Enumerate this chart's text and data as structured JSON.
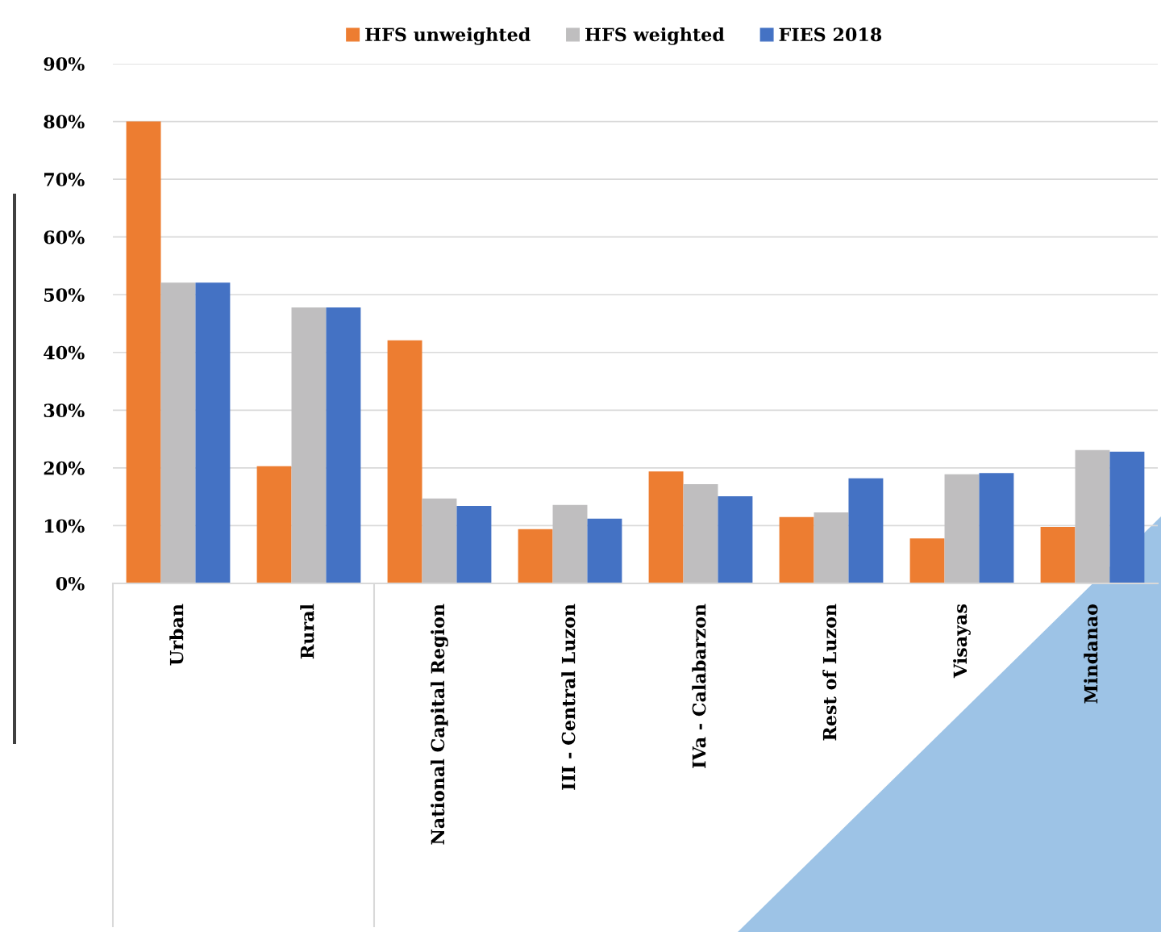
{
  "chart_data": {
    "type": "bar",
    "categories": [
      "Urban",
      "Rural",
      "National Capital Region",
      "III - Central Luzon",
      "IVa - Calabarzon",
      "Rest of Luzon",
      "Visayas",
      "Mindanao"
    ],
    "series": [
      {
        "name": "HFS unweighted",
        "color": "#ed7d31",
        "values": [
          80.0,
          20.3,
          42.1,
          9.4,
          19.4,
          11.5,
          7.8,
          9.8
        ]
      },
      {
        "name": "HFS weighted",
        "color": "#bfbebf",
        "values": [
          52.1,
          47.8,
          14.7,
          13.6,
          17.2,
          12.3,
          18.9,
          23.1
        ]
      },
      {
        "name": "FIES 2018",
        "color": "#4472c4",
        "values": [
          52.1,
          47.8,
          13.4,
          11.2,
          15.1,
          18.2,
          19.1,
          22.8
        ]
      }
    ],
    "ylim": [
      0,
      90
    ],
    "yticks": [
      {
        "value": 0,
        "label": "0%"
      },
      {
        "value": 10,
        "label": "10%"
      },
      {
        "value": 20,
        "label": "20%"
      },
      {
        "value": 30,
        "label": "30%"
      },
      {
        "value": 40,
        "label": "40%"
      },
      {
        "value": 50,
        "label": "50%"
      },
      {
        "value": 60,
        "label": "60%"
      },
      {
        "value": 70,
        "label": "70%"
      },
      {
        "value": 80,
        "label": "80%"
      },
      {
        "value": 90,
        "label": "90%"
      }
    ],
    "grid": "y",
    "legend": "top"
  }
}
